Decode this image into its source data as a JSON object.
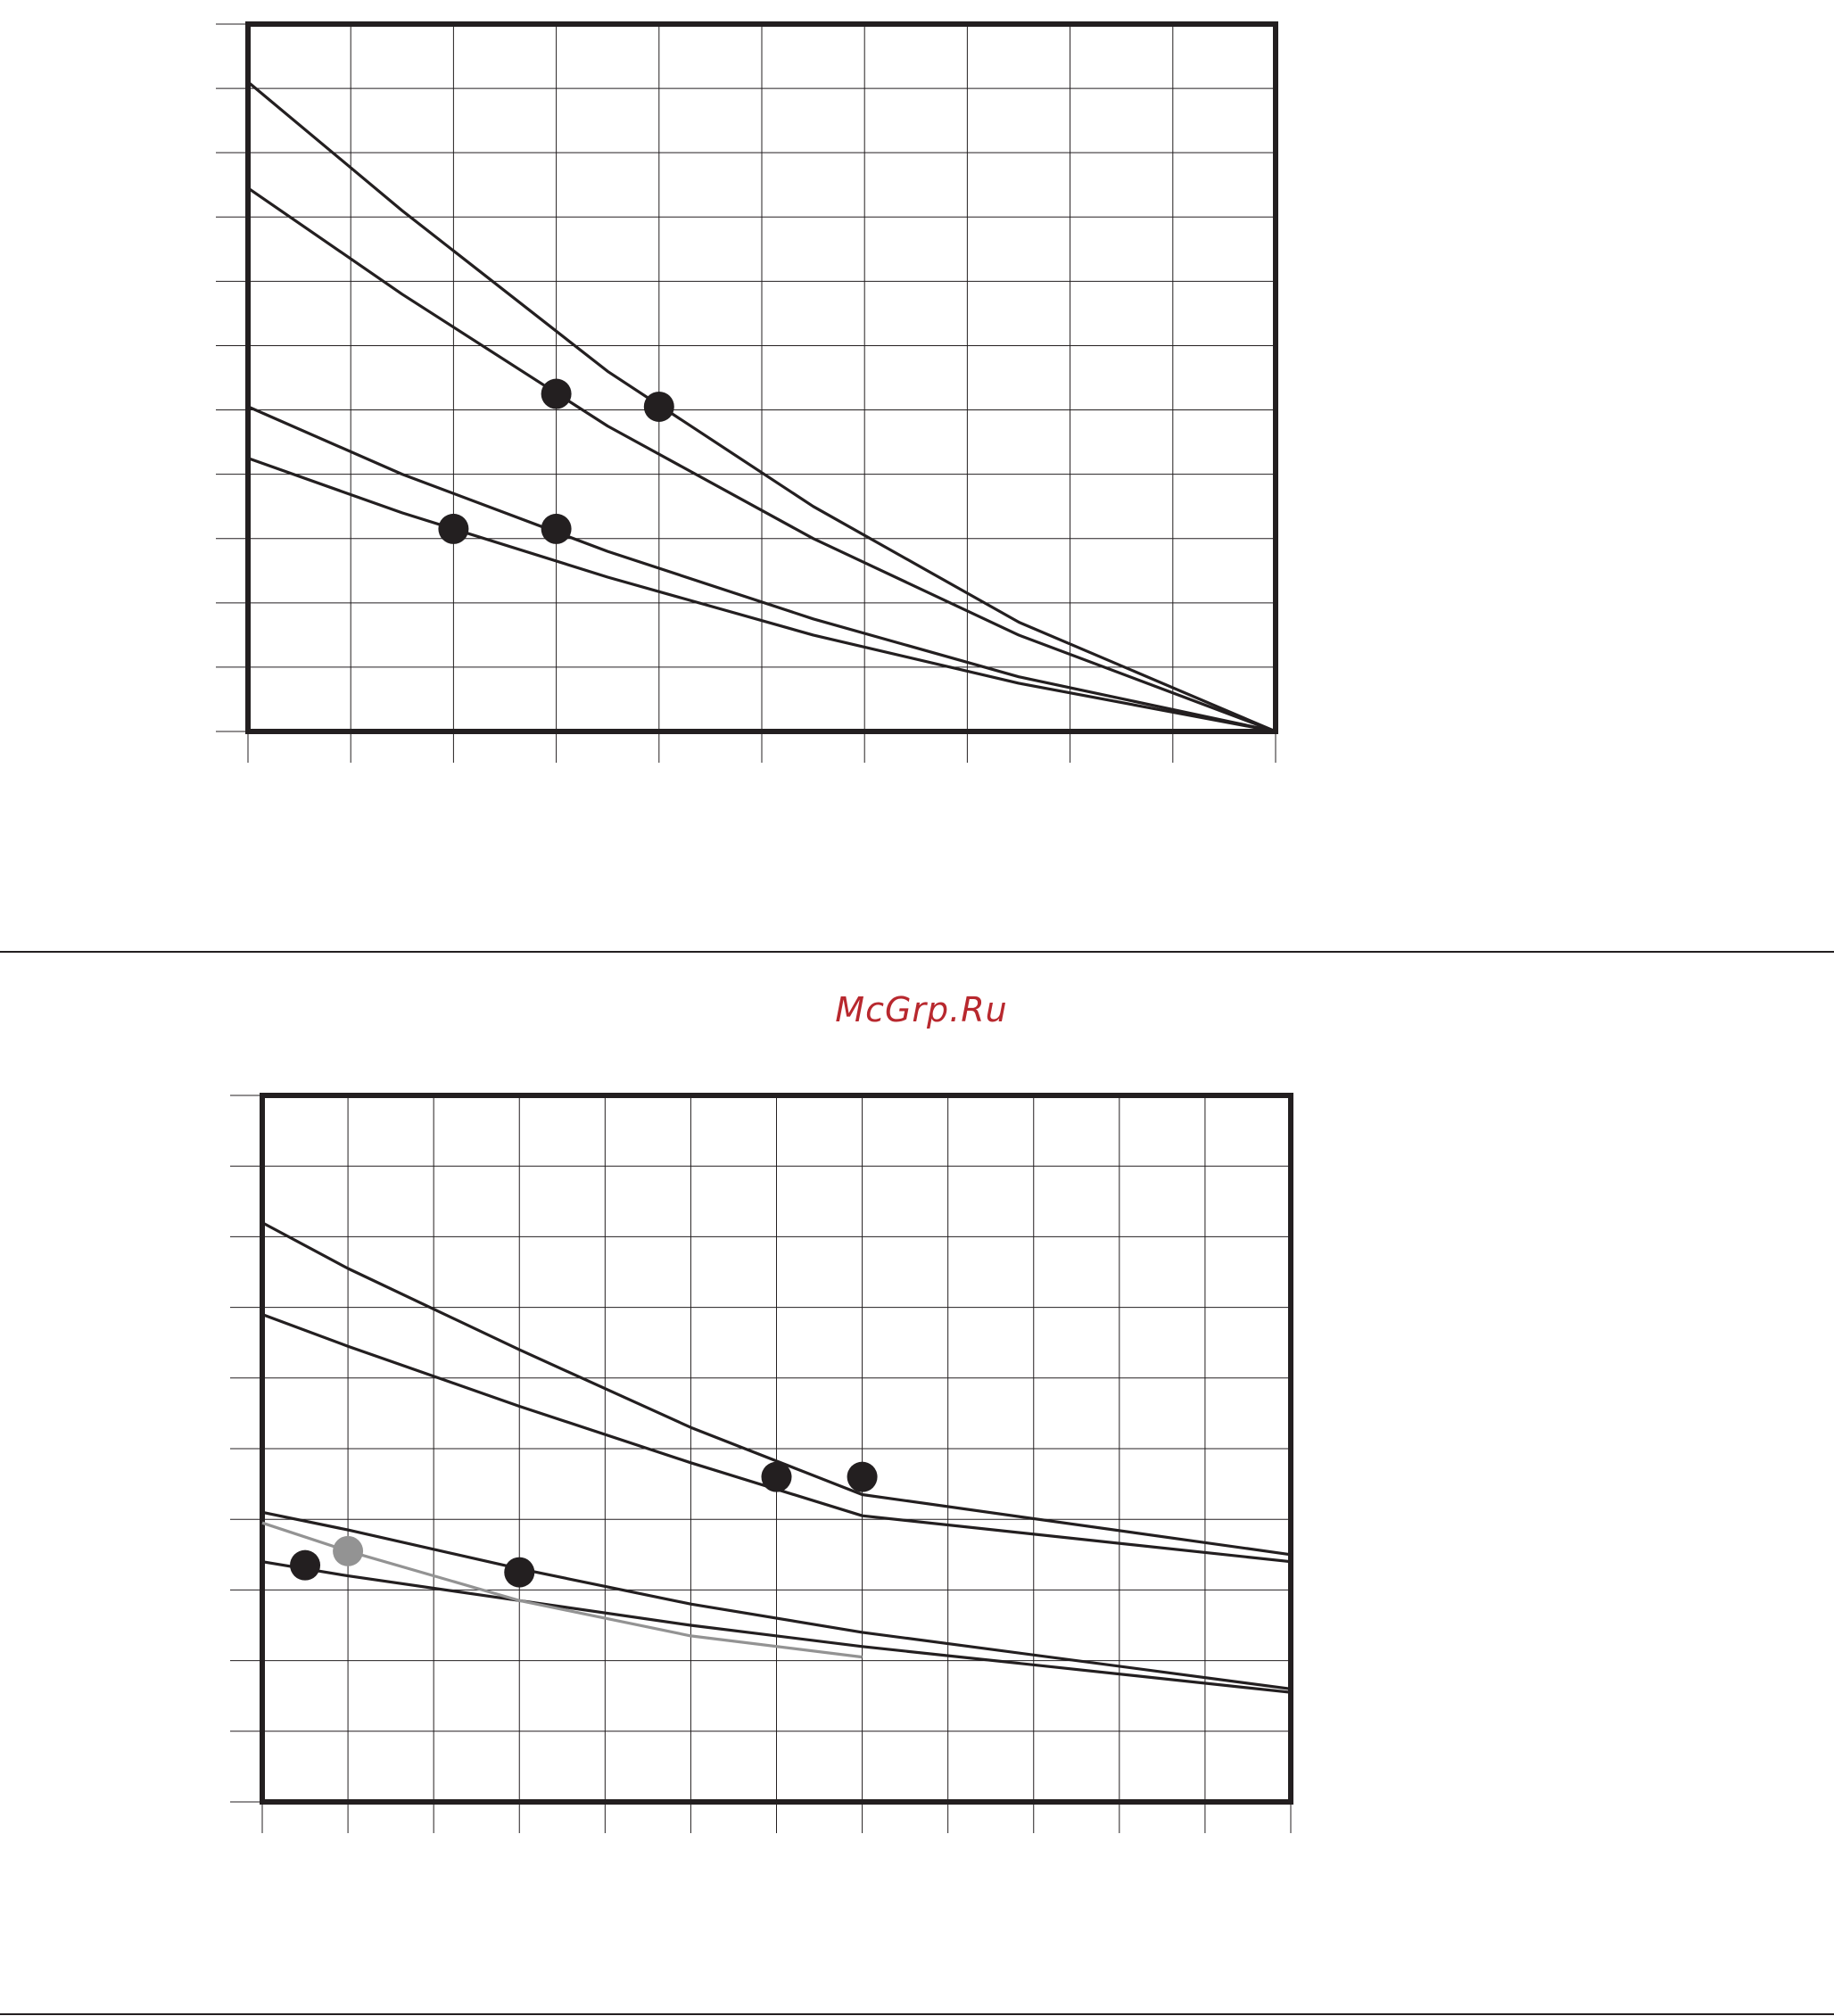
{
  "watermark": {
    "text": "McGrp.Ru",
    "color": "#b8282e"
  },
  "colors": {
    "frame": "#231f20",
    "grid": "#231f20",
    "series": "#231f20",
    "series_gray": "#939393",
    "divider": "#231f20"
  },
  "chart_data": [
    {
      "type": "line",
      "title": "",
      "xlabel": "",
      "ylabel": "",
      "xlim": [
        0,
        10
      ],
      "ylim": [
        0,
        11
      ],
      "grid": true,
      "legend": "none",
      "x_ticks": 10,
      "y_ticks": 11,
      "series": [
        {
          "color": "#231f20",
          "points": [
            [
              0,
              10.1
            ],
            [
              1.5,
              8.1
            ],
            [
              3.5,
              5.6
            ],
            [
              5.5,
              3.5
            ],
            [
              7.5,
              1.7
            ],
            [
              10,
              0
            ]
          ]
        },
        {
          "color": "#231f20",
          "points": [
            [
              0,
              8.45
            ],
            [
              1.5,
              6.8
            ],
            [
              3.5,
              4.75
            ],
            [
              5.5,
              3.0
            ],
            [
              7.5,
              1.5
            ],
            [
              10,
              0
            ]
          ]
        },
        {
          "color": "#231f20",
          "points": [
            [
              0,
              5.05
            ],
            [
              1.5,
              4.0
            ],
            [
              3.5,
              2.8
            ],
            [
              5.5,
              1.75
            ],
            [
              7.5,
              0.85
            ],
            [
              10,
              0
            ]
          ]
        },
        {
          "color": "#231f20",
          "points": [
            [
              0,
              4.25
            ],
            [
              1.5,
              3.4
            ],
            [
              3.5,
              2.4
            ],
            [
              5.5,
              1.5
            ],
            [
              7.5,
              0.75
            ],
            [
              10,
              0
            ]
          ]
        }
      ],
      "markers": [
        {
          "x": 3.0,
          "y": 5.25,
          "color": "#231f20"
        },
        {
          "x": 4.0,
          "y": 5.05,
          "color": "#231f20"
        },
        {
          "x": 2.0,
          "y": 3.15,
          "color": "#231f20"
        },
        {
          "x": 3.0,
          "y": 3.15,
          "color": "#231f20"
        }
      ]
    },
    {
      "type": "line",
      "title": "",
      "xlabel": "",
      "ylabel": "",
      "xlim": [
        0,
        12
      ],
      "ylim": [
        0,
        10
      ],
      "grid": true,
      "legend": "none",
      "x_ticks": 12,
      "y_ticks": 10,
      "series": [
        {
          "color": "#231f20",
          "points": [
            [
              0,
              8.2
            ],
            [
              1,
              7.55
            ],
            [
              3,
              6.4
            ],
            [
              5,
              5.3
            ],
            [
              7,
              4.35
            ],
            [
              12,
              3.5
            ]
          ]
        },
        {
          "color": "#231f20",
          "points": [
            [
              0,
              6.9
            ],
            [
              1,
              6.45
            ],
            [
              3,
              5.6
            ],
            [
              5,
              4.8
            ],
            [
              7,
              4.05
            ],
            [
              12,
              3.4
            ]
          ]
        },
        {
          "color": "#231f20",
          "points": [
            [
              0,
              4.1
            ],
            [
              1,
              3.85
            ],
            [
              3,
              3.3
            ],
            [
              5,
              2.8
            ],
            [
              7,
              2.4
            ],
            [
              12,
              1.6
            ]
          ]
        },
        {
          "color": "#231f20",
          "points": [
            [
              0,
              3.4
            ],
            [
              1,
              3.2
            ],
            [
              3,
              2.85
            ],
            [
              5,
              2.5
            ],
            [
              7,
              2.2
            ],
            [
              12,
              1.55
            ]
          ]
        },
        {
          "color": "#939393",
          "points": [
            [
              0,
              3.95
            ],
            [
              1,
              3.55
            ],
            [
              3,
              2.85
            ],
            [
              5,
              2.35
            ],
            [
              7,
              2.05
            ]
          ]
        }
      ],
      "markers": [
        {
          "x": 0.5,
          "y": 3.35,
          "color": "#231f20"
        },
        {
          "x": 1.0,
          "y": 3.55,
          "color": "#939393"
        },
        {
          "x": 3.0,
          "y": 3.25,
          "color": "#231f20"
        },
        {
          "x": 6.0,
          "y": 4.6,
          "color": "#231f20"
        },
        {
          "x": 7.0,
          "y": 4.6,
          "color": "#231f20"
        }
      ]
    }
  ]
}
